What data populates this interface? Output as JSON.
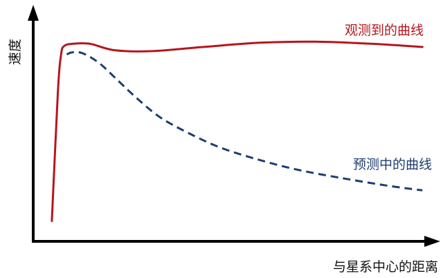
{
  "chart_data": {
    "type": "line",
    "title": "",
    "xlabel": "与星系中心的距离",
    "ylabel": "速度",
    "xlim": [
      0,
      100
    ],
    "ylim": [
      0,
      100
    ],
    "grid": false,
    "legend": "none",
    "ticks_shown": false,
    "series": [
      {
        "name": "观测到的曲线",
        "style": "solid",
        "color": "#b5161c",
        "points": [
          [
            4.3,
            9
          ],
          [
            5.8,
            70
          ],
          [
            6.6,
            88
          ],
          [
            7.4,
            92
          ],
          [
            9.5,
            93
          ],
          [
            13.8,
            93
          ],
          [
            19.8,
            90
          ],
          [
            28.8,
            89.5
          ],
          [
            42,
            91.5
          ],
          [
            56,
            93.5
          ],
          [
            70,
            94
          ],
          [
            84,
            93
          ],
          [
            96.6,
            91.5
          ]
        ]
      },
      {
        "name": "预测中的曲线",
        "style": "dashed",
        "color": "#1f3d6e",
        "points": [
          [
            8,
            88
          ],
          [
            9.5,
            89
          ],
          [
            12,
            88.5
          ],
          [
            16,
            84
          ],
          [
            20,
            77
          ],
          [
            25,
            68
          ],
          [
            31,
            58.5
          ],
          [
            38,
            51
          ],
          [
            46,
            44
          ],
          [
            55,
            38.5
          ],
          [
            65,
            33.5
          ],
          [
            76,
            29.5
          ],
          [
            87,
            26
          ],
          [
            96.6,
            23.5
          ]
        ]
      }
    ]
  }
}
